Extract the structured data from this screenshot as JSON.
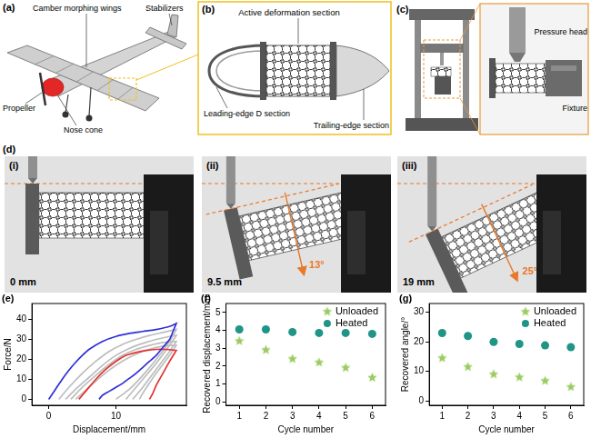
{
  "figure": {
    "a": {
      "label": "(a)",
      "wings": "Camber morphing wings",
      "stabilizers": "Stabilizers",
      "propeller": "Propeller",
      "nose_cone": "Nose cone"
    },
    "b": {
      "label": "(b)",
      "active": "Active deformation section",
      "leading": "Leading-edge D section",
      "trailing": "Trailing-edge section"
    },
    "c": {
      "label": "(c)",
      "head": "Pressure head",
      "fixture": "Fixture"
    },
    "d": {
      "label": "(d)",
      "photos": [
        {
          "label": "(i)",
          "displacement": "0 mm"
        },
        {
          "label": "(ii)",
          "displacement": "9.5 mm",
          "angle": "13°"
        },
        {
          "label": "(iii)",
          "displacement": "19 mm",
          "angle": "25°"
        }
      ]
    }
  },
  "chart_data": [
    {
      "panel_label": "(e)",
      "type": "line",
      "x_label": "Displacement/mm",
      "y_label": "Force/N",
      "xlim": [
        -2.5,
        20.5
      ],
      "xticks": [
        0,
        10
      ],
      "ylim": [
        -3,
        48
      ],
      "yticks": [
        0,
        10,
        20,
        30,
        40
      ],
      "grid": false,
      "series": [
        {
          "color": "#2f2fd8",
          "x": [
            0,
            1,
            2,
            3,
            4,
            5,
            6,
            8,
            10,
            12,
            14,
            16,
            18,
            19,
            19,
            18.5,
            18,
            17,
            16,
            15,
            14,
            13,
            12,
            11,
            10,
            9,
            8,
            7.5
          ],
          "values": [
            0,
            5,
            10,
            14.5,
            18.5,
            22,
            25,
            29,
            31.5,
            33,
            34,
            35,
            36.5,
            38,
            38,
            34,
            30,
            26,
            22,
            19,
            16,
            13,
            10.5,
            8,
            6,
            4,
            2,
            0
          ]
        },
        {
          "color": "#e53030",
          "x": [
            4.5,
            5.5,
            7,
            8.5,
            10,
            11.5,
            13,
            14.5,
            16,
            17.5,
            19,
            19,
            18,
            17,
            16,
            15.5,
            15
          ],
          "values": [
            0,
            4,
            10,
            15,
            19,
            22,
            23.5,
            24.5,
            25,
            25,
            24.5,
            24.5,
            19,
            13,
            7,
            3,
            0
          ]
        },
        {
          "color": "#bdbdbd",
          "x": [
            1.5,
            3,
            5,
            7,
            9,
            11,
            13,
            15,
            17,
            19,
            19,
            18,
            16,
            14,
            12,
            10
          ],
          "values": [
            0,
            6,
            13,
            19,
            24,
            27.5,
            30,
            32,
            33.5,
            35,
            35,
            29,
            20,
            12,
            5,
            0
          ]
        },
        {
          "color": "#bdbdbd",
          "x": [
            2.5,
            4,
            6,
            8,
            10,
            12,
            14,
            16,
            18,
            19,
            19,
            18,
            16,
            14,
            12,
            11.5
          ],
          "values": [
            0,
            5,
            11,
            17,
            22,
            25.5,
            28,
            30,
            31.5,
            32,
            32,
            27,
            18,
            10,
            2,
            0
          ]
        },
        {
          "color": "#bdbdbd",
          "x": [
            3.3,
            5,
            7,
            9,
            11,
            13,
            15,
            17,
            19,
            19,
            18,
            16,
            14,
            12.5
          ],
          "values": [
            0,
            6,
            12,
            17.5,
            22,
            25,
            27,
            28.5,
            29,
            29,
            24,
            15,
            6,
            0
          ]
        },
        {
          "color": "#bdbdbd",
          "x": [
            4,
            6,
            8,
            10,
            12,
            14,
            16,
            18,
            19,
            19,
            18,
            16,
            14,
            13.5
          ],
          "values": [
            0,
            6,
            12,
            17,
            21,
            24,
            26,
            27,
            27,
            27,
            22,
            13,
            3,
            0
          ]
        }
      ]
    },
    {
      "panel_label": "(f)",
      "type": "scatter",
      "x_label": "Cycle number",
      "y_label": "Recovered displacement/mm",
      "x": [
        1,
        2,
        3,
        4,
        5,
        6
      ],
      "xlim": [
        0.5,
        6.5
      ],
      "xticks": [
        1,
        2,
        3,
        4,
        5,
        6
      ],
      "ylim": [
        -0.2,
        5.5
      ],
      "yticks": [
        0,
        1,
        2,
        3,
        4,
        5
      ],
      "grid": false,
      "legend": "upper right",
      "series": [
        {
          "name": "Unloaded",
          "color": "#9bcb62",
          "marker": "star",
          "values": [
            3.4,
            2.9,
            2.4,
            2.2,
            1.9,
            1.35
          ]
        },
        {
          "name": "Heated",
          "color": "#1f9487",
          "marker": "circle",
          "values": [
            4.05,
            4.05,
            3.9,
            3.85,
            3.85,
            3.8
          ]
        }
      ]
    },
    {
      "panel_label": "(g)",
      "type": "scatter",
      "x_label": "Cycle number",
      "y_label": "Recovered angle/°",
      "x": [
        1,
        2,
        3,
        4,
        5,
        6
      ],
      "xlim": [
        0.5,
        6.5
      ],
      "xticks": [
        1,
        2,
        3,
        4,
        5,
        6
      ],
      "ylim": [
        -1.5,
        33
      ],
      "yticks": [
        0,
        10,
        20,
        30
      ],
      "grid": false,
      "legend": "upper right",
      "series": [
        {
          "name": "Unloaded",
          "color": "#9bcb62",
          "marker": "star",
          "values": [
            14.5,
            11.5,
            9,
            8,
            6.8,
            4.7
          ]
        },
        {
          "name": "Heated",
          "color": "#1f9487",
          "marker": "circle",
          "values": [
            23,
            22,
            20,
            19.3,
            18.8,
            18.2
          ]
        }
      ]
    }
  ]
}
